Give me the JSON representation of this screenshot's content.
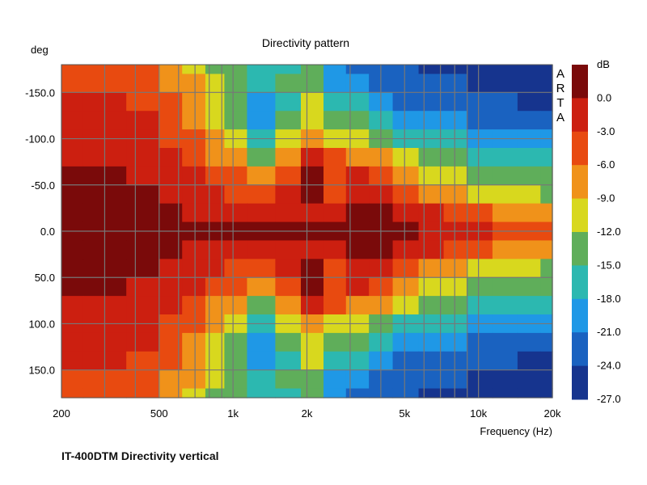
{
  "chart_data": {
    "type": "heatmap",
    "title": "Directivity pattern",
    "caption": "IT-400DTM Directivity vertical",
    "ylabel": "deg",
    "xlabel": "Frequency (Hz)",
    "watermark": "ARTA",
    "x_scale": "log",
    "xlim": [
      200,
      20000
    ],
    "ylim": [
      180,
      -180
    ],
    "x_ticks": [
      {
        "value": 200,
        "label": "200"
      },
      {
        "value": 500,
        "label": "500"
      },
      {
        "value": 1000,
        "label": "1k"
      },
      {
        "value": 2000,
        "label": "2k"
      },
      {
        "value": 5000,
        "label": "5k"
      },
      {
        "value": 10000,
        "label": "10k"
      },
      {
        "value": 20000,
        "label": "20k"
      }
    ],
    "x_gridlines": [
      200,
      300,
      400,
      500,
      600,
      700,
      800,
      900,
      1000,
      2000,
      3000,
      4000,
      5000,
      6000,
      7000,
      8000,
      9000,
      10000,
      20000
    ],
    "y_ticks": [
      {
        "value": -150,
        "label": "-150.0"
      },
      {
        "value": -100,
        "label": "-100.0"
      },
      {
        "value": -50,
        "label": "-50.0"
      },
      {
        "value": 0,
        "label": "0.0"
      },
      {
        "value": 50,
        "label": "50.0"
      },
      {
        "value": 100,
        "label": "100.0"
      },
      {
        "value": 150,
        "label": "150.0"
      }
    ],
    "colorbar": {
      "unit": "dB",
      "labels": [
        "0.0",
        "-3.0",
        "-6.0",
        "-9.0",
        "-12.0",
        "-15.0",
        "-18.0",
        "-21.0",
        "-24.0",
        "-27.0"
      ],
      "colors": [
        "#7a0a0a",
        "#cc1f10",
        "#e84a10",
        "#f0921a",
        "#d8d81e",
        "#5fae5a",
        "#2cb8b0",
        "#1f98e6",
        "#1a62c0",
        "#16348e"
      ]
    },
    "freq_columns": [
      200,
      300,
      450,
      550,
      700,
      850,
      1000,
      1300,
      1700,
      2100,
      2600,
      3200,
      4000,
      5000,
      6500,
      8000,
      10000,
      13000,
      16000,
      20000
    ],
    "angle_rows": [
      -180,
      -160,
      -140,
      -120,
      -100,
      -80,
      -60,
      -40,
      -20,
      0,
      20,
      40,
      60,
      80,
      100,
      120,
      140,
      160,
      180
    ],
    "values_db": [
      [
        -6,
        -6,
        -8,
        -10,
        -12,
        -15,
        -17,
        -20,
        -18,
        -16,
        -22,
        -24,
        -24,
        -26,
        -27,
        -27,
        -27,
        -27,
        -27,
        -27
      ],
      [
        -6,
        -6,
        -7,
        -9,
        -11,
        -14,
        -16,
        -19,
        -17,
        -15,
        -21,
        -23,
        -24,
        -25,
        -26,
        -26,
        -27,
        -27,
        -27,
        -27
      ],
      [
        -5,
        -5,
        -6,
        -8,
        -10,
        -13,
        -16,
        -22,
        -18,
        -14,
        -18,
        -20,
        -22,
        -24,
        -25,
        -25,
        -26,
        -26,
        -27,
        -27
      ],
      [
        -5,
        -5,
        -5,
        -7,
        -9,
        -12,
        -15,
        -22,
        -17,
        -12,
        -15,
        -17,
        -19,
        -21,
        -23,
        -23,
        -24,
        -25,
        -26,
        -26
      ],
      [
        -4,
        -4,
        -5,
        -6,
        -8,
        -11,
        -14,
        -20,
        -14,
        -9,
        -12,
        -14,
        -16,
        -18,
        -20,
        -20,
        -21,
        -22,
        -23,
        -23
      ],
      [
        -3,
        -3,
        -4,
        -5,
        -7,
        -9,
        -11,
        -15,
        -11,
        -5,
        -8,
        -9,
        -10,
        -13,
        -16,
        -17,
        -18,
        -19,
        -19,
        -20
      ],
      [
        -2,
        -2,
        -3,
        -4,
        -5,
        -7,
        -8,
        -10,
        -7,
        -2,
        -7,
        -5,
        -6,
        -9,
        -12,
        -14,
        -15,
        -16,
        -16,
        -17
      ],
      [
        -2,
        -2,
        -2,
        -3,
        -4,
        -5,
        -6,
        -7,
        -5,
        0,
        -6,
        -3,
        -3,
        -6,
        -9,
        -11,
        -12,
        -13,
        -14,
        -15
      ],
      [
        -2,
        -2,
        -2,
        -2,
        -3,
        -3,
        -4,
        -4,
        -3,
        -3,
        -4,
        -2,
        -2,
        -3,
        -5,
        -7,
        -8,
        -9,
        -10,
        -11
      ],
      [
        -2,
        -2,
        -2,
        -2,
        -2,
        -2,
        -2,
        -2,
        -2,
        -2,
        -2,
        -2,
        -2,
        -2,
        -3,
        -4,
        -5,
        -6,
        -7,
        -7
      ],
      [
        -2,
        -2,
        -2,
        -2,
        -3,
        -3,
        -4,
        -4,
        -3,
        -3,
        -4,
        -2,
        -2,
        -3,
        -5,
        -7,
        -8,
        -9,
        -10,
        -11
      ],
      [
        -2,
        -2,
        -2,
        -3,
        -4,
        -5,
        -6,
        -7,
        -5,
        0,
        -6,
        -3,
        -3,
        -6,
        -9,
        -11,
        -12,
        -13,
        -14,
        -15
      ],
      [
        -2,
        -2,
        -3,
        -4,
        -5,
        -7,
        -8,
        -10,
        -7,
        -2,
        -7,
        -5,
        -6,
        -9,
        -12,
        -14,
        -15,
        -16,
        -16,
        -17
      ],
      [
        -3,
        -3,
        -4,
        -5,
        -7,
        -9,
        -11,
        -15,
        -11,
        -5,
        -8,
        -9,
        -10,
        -13,
        -16,
        -17,
        -18,
        -19,
        -19,
        -20
      ],
      [
        -4,
        -4,
        -5,
        -6,
        -8,
        -11,
        -14,
        -20,
        -14,
        -9,
        -12,
        -14,
        -16,
        -18,
        -20,
        -20,
        -21,
        -22,
        -23,
        -23
      ],
      [
        -5,
        -5,
        -5,
        -7,
        -9,
        -12,
        -15,
        -22,
        -17,
        -12,
        -15,
        -17,
        -19,
        -21,
        -23,
        -23,
        -24,
        -25,
        -26,
        -26
      ],
      [
        -5,
        -5,
        -6,
        -8,
        -10,
        -13,
        -16,
        -22,
        -18,
        -14,
        -18,
        -20,
        -22,
        -24,
        -25,
        -25,
        -26,
        -26,
        -27,
        -27
      ],
      [
        -6,
        -6,
        -7,
        -9,
        -11,
        -14,
        -16,
        -19,
        -17,
        -15,
        -21,
        -23,
        -24,
        -25,
        -26,
        -26,
        -27,
        -27,
        -27,
        -27
      ],
      [
        -6,
        -6,
        -8,
        -10,
        -12,
        -15,
        -17,
        -20,
        -18,
        -16,
        -22,
        -24,
        -24,
        -26,
        -27,
        -27,
        -27,
        -27,
        -27,
        -27
      ]
    ]
  }
}
